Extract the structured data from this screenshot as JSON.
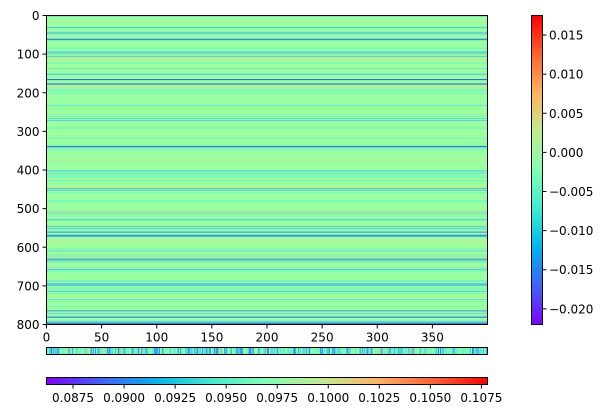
{
  "chart_data": {
    "type": "heatmap",
    "title": "",
    "xlabel": "",
    "ylabel": "",
    "main_heatmap": {
      "rows": 800,
      "cols": 400,
      "xlim": [
        0,
        400
      ],
      "ylim": [
        800,
        0
      ],
      "x_ticks": [
        0,
        50,
        100,
        150,
        200,
        250,
        300,
        350
      ],
      "y_ticks": [
        0,
        100,
        200,
        300,
        400,
        500,
        600,
        700,
        800
      ],
      "colormap": "rainbow",
      "vmin": -0.022,
      "vmax": 0.0175,
      "typical_value": 0.001
    },
    "colorbar_vertical": {
      "ticks": [
        -0.02,
        -0.015,
        -0.01,
        -0.005,
        0.0,
        0.005,
        0.01,
        0.015
      ],
      "tick_labels": [
        "−0.020",
        "−0.015",
        "−0.010",
        "−0.005",
        "0.000",
        "0.005",
        "0.010",
        "0.015"
      ],
      "range": [
        -0.022,
        0.0175
      ]
    },
    "strip_heatmap": {
      "cols": 400,
      "colormap": "rainbow",
      "range": [
        0.0862,
        0.1078
      ]
    },
    "colorbar_horizontal": {
      "ticks": [
        0.0875,
        0.09,
        0.0925,
        0.095,
        0.0975,
        0.1,
        0.1025,
        0.105,
        0.1075
      ],
      "tick_labels": [
        "0.0875",
        "0.0900",
        "0.0925",
        "0.0950",
        "0.0975",
        "0.1000",
        "0.1025",
        "0.1050",
        "0.1075"
      ],
      "range": [
        0.0862,
        0.1078
      ]
    }
  }
}
